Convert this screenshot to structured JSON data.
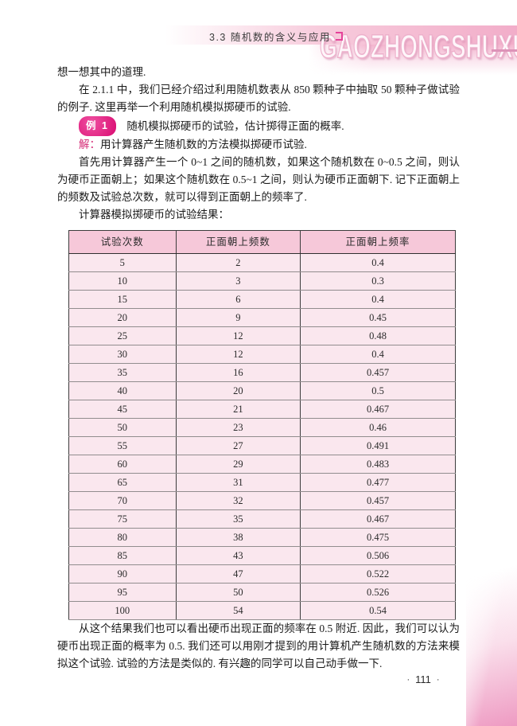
{
  "header": {
    "section_label": "3.3  随机数的含义与应用",
    "watermark": "GAOZHONGSHUXUE"
  },
  "body": {
    "p1": "想一想其中的道理.",
    "p2": "在 2.1.1 中，我们已经介绍过利用随机数表从 850 颗种子中抽取 50 颗种子做试验的例子. 这里再举一个利用随机模拟掷硬币的试验.",
    "p3": "首先用计算器产生一个 0~1 之间的随机数，如果这个随机数在 0~0.5 之间，则认为硬币正面朝上；如果这个随机数在 0.5~1 之间，则认为硬币正面朝下. 记下正面朝上的频数及试验总次数，就可以得到正面朝上的频率了.",
    "p4": "计算器模拟掷硬币的试验结果：",
    "p5": "从这个结果我们也可以看出硬币出现正面的频率在 0.5 附近. 因此，我们可以认为硬币出现正面的概率为 0.5. 我们还可以用刚才提到的用计算机产生随机数的方法来模拟这个试验. 试验的方法是类似的. 有兴趣的同学可以自己动手做一下."
  },
  "example": {
    "badge": "例 1",
    "text": "随机模拟掷硬币的试验，估计掷得正面的概率."
  },
  "solution": {
    "label": "解：",
    "text": "用计算器产生随机数的方法模拟掷硬币试验."
  },
  "table": {
    "headers": [
      "试验次数",
      "正面朝上频数",
      "正面朝上频率"
    ],
    "rows": [
      [
        "5",
        "2",
        "0.4"
      ],
      [
        "10",
        "3",
        "0.3"
      ],
      [
        "15",
        "6",
        "0.4"
      ],
      [
        "20",
        "9",
        "0.45"
      ],
      [
        "25",
        "12",
        "0.48"
      ],
      [
        "30",
        "12",
        "0.4"
      ],
      [
        "35",
        "16",
        "0.457"
      ],
      [
        "40",
        "20",
        "0.5"
      ],
      [
        "45",
        "21",
        "0.467"
      ],
      [
        "50",
        "23",
        "0.46"
      ],
      [
        "55",
        "27",
        "0.491"
      ],
      [
        "60",
        "29",
        "0.483"
      ],
      [
        "65",
        "31",
        "0.477"
      ],
      [
        "70",
        "32",
        "0.457"
      ],
      [
        "75",
        "35",
        "0.467"
      ],
      [
        "80",
        "38",
        "0.475"
      ],
      [
        "85",
        "43",
        "0.506"
      ],
      [
        "90",
        "47",
        "0.522"
      ],
      [
        "95",
        "50",
        "0.526"
      ],
      [
        "100",
        "54",
        "0.54"
      ]
    ]
  },
  "footer": {
    "dot": "·",
    "page_number": "111"
  },
  "colors": {
    "accent_magenta": "#d90c72",
    "band_pink": "#f2adc9",
    "table_header_bg": "#f6c8d9",
    "table_row_bg": "#fae7ee",
    "corner_pink": "#ee9ac2"
  }
}
